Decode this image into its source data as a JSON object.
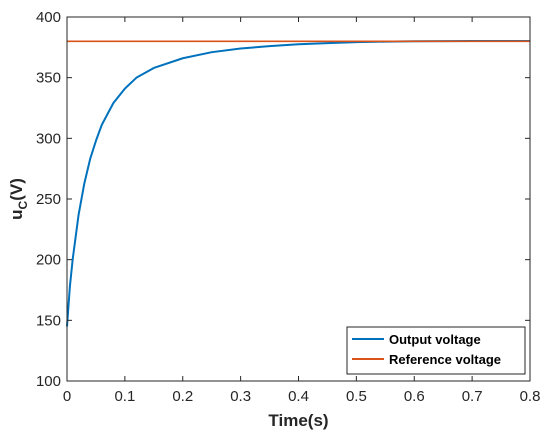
{
  "chart_data": {
    "type": "line",
    "title": "",
    "xlabel": "Time(s)",
    "ylabel": "u",
    "ylabel_sub": "C",
    "ylabel_unit": "(V)",
    "xlim": [
      0,
      0.8
    ],
    "ylim": [
      100,
      400
    ],
    "xticks": [
      "0",
      "0.1",
      "0.2",
      "0.3",
      "0.4",
      "0.5",
      "0.6",
      "0.7",
      "0.8"
    ],
    "yticks": [
      "100",
      "150",
      "200",
      "250",
      "300",
      "350",
      "400"
    ],
    "grid": false,
    "legend_position": "bottom-right",
    "series": [
      {
        "name": "Output voltage",
        "color": "#0072BD",
        "x": [
          0,
          0.005,
          0.01,
          0.02,
          0.03,
          0.04,
          0.05,
          0.06,
          0.08,
          0.1,
          0.12,
          0.15,
          0.2,
          0.25,
          0.3,
          0.35,
          0.4,
          0.45,
          0.5,
          0.55,
          0.6,
          0.65,
          0.7,
          0.75,
          0.8
        ],
        "y": [
          145,
          178,
          201,
          237,
          263,
          283,
          298,
          311,
          329,
          341,
          350,
          358,
          366,
          371,
          374,
          376,
          377.5,
          378.5,
          379.3,
          379.7,
          380.0,
          380.1,
          380.2,
          380.2,
          380.2
        ]
      },
      {
        "name": "Reference voltage",
        "color": "#D95319",
        "x": [
          0,
          0.8
        ],
        "y": [
          380,
          380
        ]
      }
    ]
  }
}
